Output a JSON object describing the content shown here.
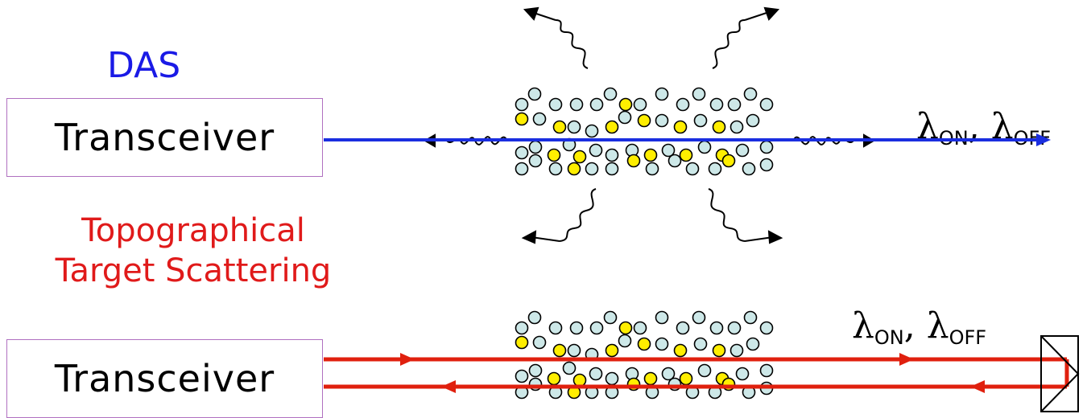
{
  "das": {
    "label": "DAS",
    "transceiver_label": "Transceiver"
  },
  "topographical": {
    "line1": "Topographical",
    "line2": "Target Scattering",
    "transceiver_label": "Transceiver"
  },
  "wavelength_label": {
    "lambda": "λ",
    "on": "ON",
    "sep": ", ",
    "off": "OFF"
  },
  "colors": {
    "das_beam": "#1a2ee0",
    "topo_beam": "#e0200e",
    "particle_a": "#cde8e8",
    "particle_b": "#ffee00",
    "box_border": "#b070c0"
  }
}
